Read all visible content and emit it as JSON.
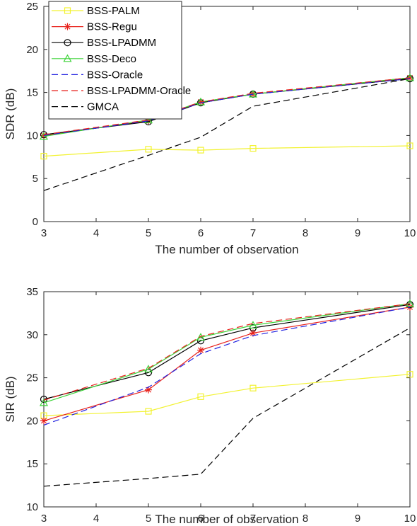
{
  "chart_data": [
    {
      "type": "line",
      "xlabel": "The number of observation",
      "ylabel": "SDR (dB)",
      "xlim": [
        3,
        10
      ],
      "ylim": [
        0,
        25
      ],
      "xticks": [
        3,
        4,
        5,
        6,
        7,
        8,
        9,
        10
      ],
      "yticks": [
        0,
        5,
        10,
        15,
        20,
        25
      ],
      "grid": false,
      "legend": "top-left, overlapping plot",
      "x": [
        3,
        5,
        6,
        7,
        10
      ],
      "series": [
        {
          "name": "BSS-PALM",
          "color": "#F2F230",
          "marker": "square",
          "dash": "solid",
          "values": [
            7.6,
            8.4,
            8.3,
            8.5,
            8.8
          ]
        },
        {
          "name": "BSS-Regu",
          "color": "#E8221C",
          "marker": "star",
          "dash": "solid",
          "values": [
            10.0,
            11.7,
            13.9,
            14.8,
            16.7
          ]
        },
        {
          "name": "BSS-LPADMM",
          "color": "#000000",
          "marker": "circle",
          "dash": "solid",
          "values": [
            10.1,
            11.6,
            13.8,
            14.8,
            16.6
          ]
        },
        {
          "name": "BSS-Deco",
          "color": "#3ED43A",
          "marker": "triangle",
          "dash": "solid",
          "values": [
            9.9,
            11.8,
            13.9,
            14.8,
            16.7
          ]
        },
        {
          "name": "BSS-Oracle",
          "color": "#2222E0",
          "marker": "none",
          "dash": "dashed",
          "values": [
            10.0,
            11.7,
            13.8,
            14.8,
            16.6
          ]
        },
        {
          "name": "BSS-LPADMM-Oracle",
          "color": "#E8221C",
          "marker": "none",
          "dash": "dashed",
          "values": [
            10.1,
            11.8,
            13.9,
            14.9,
            16.7
          ]
        },
        {
          "name": "GMCA",
          "color": "#000000",
          "marker": "none",
          "dash": "dashed",
          "values": [
            3.6,
            7.7,
            9.8,
            13.4,
            16.6
          ]
        }
      ]
    },
    {
      "type": "line",
      "xlabel": "The number of observation",
      "ylabel": "SIR (dB)",
      "xlim": [
        3,
        10
      ],
      "ylim": [
        10,
        35
      ],
      "xticks": [
        3,
        4,
        5,
        6,
        7,
        8,
        9,
        10
      ],
      "yticks": [
        10,
        15,
        20,
        25,
        30,
        35
      ],
      "grid": false,
      "x": [
        3,
        5,
        6,
        7,
        10
      ],
      "series": [
        {
          "name": "BSS-PALM",
          "color": "#F2F230",
          "marker": "square",
          "dash": "solid",
          "values": [
            20.6,
            21.1,
            22.8,
            23.8,
            25.4
          ]
        },
        {
          "name": "BSS-Regu",
          "color": "#E8221C",
          "marker": "star",
          "dash": "solid",
          "values": [
            20.0,
            23.6,
            28.2,
            30.2,
            33.2
          ]
        },
        {
          "name": "BSS-LPADMM",
          "color": "#000000",
          "marker": "circle",
          "dash": "solid",
          "values": [
            22.5,
            25.6,
            29.3,
            30.8,
            33.5
          ]
        },
        {
          "name": "BSS-Deco",
          "color": "#3ED43A",
          "marker": "triangle",
          "dash": "solid",
          "values": [
            22.1,
            26.0,
            29.7,
            31.1,
            33.6
          ]
        },
        {
          "name": "BSS-Oracle",
          "color": "#2222E0",
          "marker": "none",
          "dash": "dashed",
          "values": [
            19.5,
            23.9,
            27.8,
            29.9,
            33.2
          ]
        },
        {
          "name": "BSS-LPADMM-Oracle",
          "color": "#E8221C",
          "marker": "none",
          "dash": "dashed",
          "values": [
            22.4,
            26.1,
            29.8,
            31.3,
            33.6
          ]
        },
        {
          "name": "GMCA",
          "color": "#000000",
          "marker": "none",
          "dash": "dashed",
          "values": [
            12.4,
            13.3,
            13.8,
            20.3,
            30.8
          ]
        }
      ]
    }
  ]
}
